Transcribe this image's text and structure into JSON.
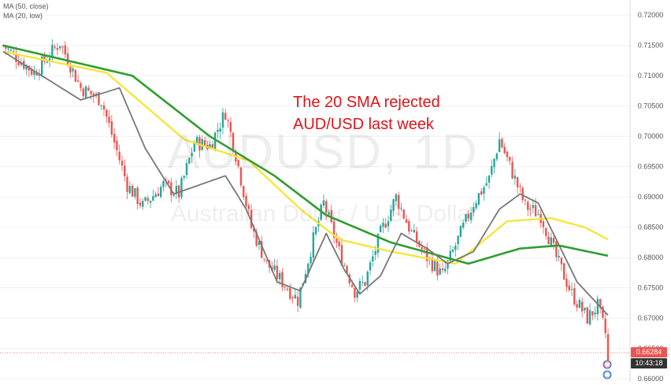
{
  "legend": {
    "ma50": "MA (50, close)",
    "ma20": "MA (20, low)"
  },
  "watermark": {
    "symbol": "AUDUSD, 1D",
    "name": "Australian Dollar / U.S. Dollar"
  },
  "annotation": {
    "line1": "The 20 SMA rejected",
    "line2": "AUD/USD last week"
  },
  "price_label": {
    "last": "0.66284",
    "countdown": "10:43:18"
  },
  "colors": {
    "up_candle": "#26a69a",
    "down_candle": "#ef5350",
    "ma50": "#f5e52a",
    "ma_green": "#2e9e2e",
    "ma20": "#777777",
    "annotation": "#e0131a",
    "countdown_bg": "#333333"
  },
  "chart_data": {
    "type": "candlestick",
    "y_axis": {
      "ticks": [
        "0.72000",
        "0.71500",
        "0.71000",
        "0.70500",
        "0.70000",
        "0.69500",
        "0.69000",
        "0.68500",
        "0.68000",
        "0.67500",
        "0.67000",
        "0.66500",
        "0.66000"
      ],
      "ylim": [
        0.6595,
        0.7225
      ]
    },
    "trend_anchors": [
      [
        0,
        0.715
      ],
      [
        12,
        0.7105
      ],
      [
        22,
        0.7155
      ],
      [
        30,
        0.708
      ],
      [
        38,
        0.706
      ],
      [
        48,
        0.692
      ],
      [
        54,
        0.6885
      ],
      [
        62,
        0.692
      ],
      [
        68,
        0.6905
      ],
      [
        74,
        0.699
      ],
      [
        80,
        0.6985
      ],
      [
        86,
        0.704
      ],
      [
        90,
        0.697
      ],
      [
        96,
        0.685
      ],
      [
        102,
        0.679
      ],
      [
        108,
        0.676
      ],
      [
        114,
        0.673
      ],
      [
        120,
        0.683
      ],
      [
        124,
        0.689
      ],
      [
        130,
        0.681
      ],
      [
        136,
        0.6745
      ],
      [
        140,
        0.676
      ],
      [
        146,
        0.684
      ],
      [
        152,
        0.69
      ],
      [
        158,
        0.684
      ],
      [
        164,
        0.68
      ],
      [
        170,
        0.677
      ],
      [
        176,
        0.683
      ],
      [
        182,
        0.689
      ],
      [
        188,
        0.693
      ],
      [
        192,
        0.6995
      ],
      [
        197,
        0.694
      ],
      [
        202,
        0.6885
      ],
      [
        208,
        0.687
      ],
      [
        214,
        0.68
      ],
      [
        220,
        0.674
      ],
      [
        226,
        0.67
      ],
      [
        230,
        0.672
      ],
      [
        234,
        0.666
      ]
    ],
    "series": [
      {
        "name": "MA (50, close)",
        "anchors": [
          [
            0,
            0.714
          ],
          [
            40,
            0.7105
          ],
          [
            70,
            0.6995
          ],
          [
            95,
            0.696
          ],
          [
            115,
            0.688
          ],
          [
            130,
            0.683
          ],
          [
            150,
            0.681
          ],
          [
            175,
            0.679
          ],
          [
            195,
            0.686
          ],
          [
            212,
            0.6865
          ],
          [
            225,
            0.685
          ],
          [
            234,
            0.683
          ]
        ]
      },
      {
        "name": "",
        "anchors": [
          [
            0,
            0.715
          ],
          [
            20,
            0.713
          ],
          [
            50,
            0.71
          ],
          [
            80,
            0.7
          ],
          [
            105,
            0.6935
          ],
          [
            125,
            0.687
          ],
          [
            150,
            0.6825
          ],
          [
            180,
            0.679
          ],
          [
            200,
            0.6815
          ],
          [
            215,
            0.682
          ],
          [
            234,
            0.6803
          ]
        ]
      },
      {
        "name": "MA (20, low)",
        "anchors": [
          [
            0,
            0.714
          ],
          [
            15,
            0.71
          ],
          [
            30,
            0.706
          ],
          [
            45,
            0.708
          ],
          [
            55,
            0.698
          ],
          [
            66,
            0.6905
          ],
          [
            76,
            0.692
          ],
          [
            86,
            0.6935
          ],
          [
            94,
            0.688
          ],
          [
            106,
            0.676
          ],
          [
            115,
            0.6745
          ],
          [
            125,
            0.684
          ],
          [
            132,
            0.678
          ],
          [
            138,
            0.674
          ],
          [
            146,
            0.677
          ],
          [
            154,
            0.684
          ],
          [
            164,
            0.6815
          ],
          [
            172,
            0.679
          ],
          [
            182,
            0.681
          ],
          [
            192,
            0.688
          ],
          [
            200,
            0.6905
          ],
          [
            207,
            0.689
          ],
          [
            214,
            0.683
          ],
          [
            222,
            0.676
          ],
          [
            234,
            0.6705
          ]
        ]
      }
    ]
  }
}
